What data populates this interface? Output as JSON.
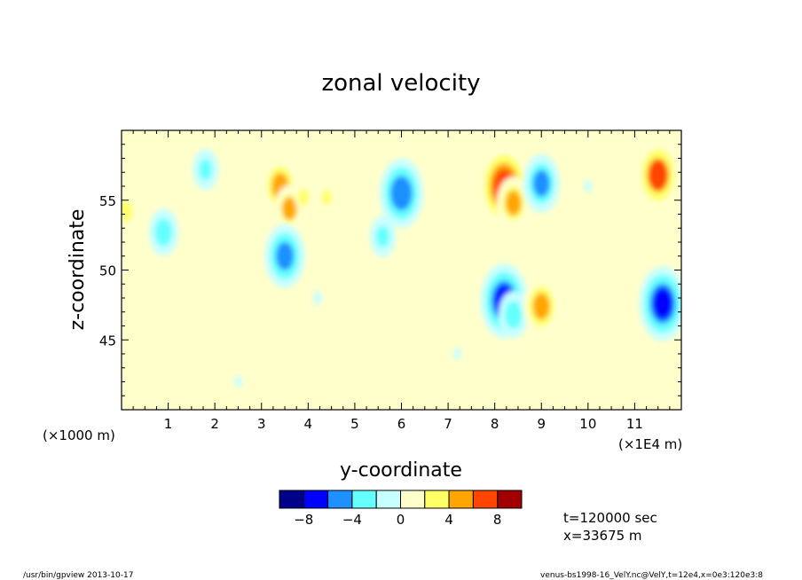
{
  "chart_data": {
    "type": "heatmap",
    "title": "zonal velocity",
    "xlabel": "y-coordinate",
    "ylabel": "z-coordinate",
    "x_unit_left": "(×1000 m)",
    "x_unit_right": "(×1E4 m)",
    "xlim": [
      0,
      12
    ],
    "ylim": [
      40,
      60
    ],
    "x_ticks": [
      "1",
      "2",
      "3",
      "4",
      "5",
      "6",
      "7",
      "8",
      "9",
      "10",
      "11"
    ],
    "y_ticks": [
      "45",
      "50",
      "55"
    ],
    "colorbar": {
      "levels": [
        -10,
        -8,
        -6,
        -4,
        -2,
        0,
        2,
        4,
        6,
        8,
        10
      ],
      "tick_labels": [
        "-8",
        "-4",
        "0",
        "4",
        "8"
      ],
      "colors": [
        "#00008b",
        "#0000ff",
        "#1e90ff",
        "#66ffff",
        "#c8ffff",
        "#ffffcc",
        "#ffff66",
        "#ffa500",
        "#ff4500",
        "#a00000"
      ]
    },
    "anomalies": [
      {
        "y": 0.9,
        "z": 52.7,
        "value": -4.5
      },
      {
        "y": 1.8,
        "z": 57.2,
        "value": -4.0
      },
      {
        "y": 3.4,
        "z": 56.0,
        "value": 5.5
      },
      {
        "y": 3.6,
        "z": 54.4,
        "value": 4.5
      },
      {
        "y": 3.9,
        "z": 55.2,
        "value": 3.0
      },
      {
        "y": 3.5,
        "z": 51.0,
        "value": -6.0
      },
      {
        "y": 4.4,
        "z": 55.2,
        "value": 2.5
      },
      {
        "y": 4.2,
        "z": 48.0,
        "value": -2.0
      },
      {
        "y": 5.6,
        "z": 52.4,
        "value": -4.0
      },
      {
        "y": 6.0,
        "z": 55.5,
        "value": -6.5
      },
      {
        "y": 6.5,
        "z": 53.5,
        "value": 1.5
      },
      {
        "y": 8.2,
        "z": 56.0,
        "value": 7.5
      },
      {
        "y": 8.4,
        "z": 54.8,
        "value": 5.0
      },
      {
        "y": 9.0,
        "z": 56.2,
        "value": -5.5
      },
      {
        "y": 8.2,
        "z": 47.8,
        "value": -7.0
      },
      {
        "y": 8.4,
        "z": 46.8,
        "value": -4.5
      },
      {
        "y": 9.0,
        "z": 47.4,
        "value": 5.5
      },
      {
        "y": 11.6,
        "z": 47.6,
        "value": -7.0
      },
      {
        "y": 11.5,
        "z": 56.8,
        "value": 6.5
      },
      {
        "y": 0.1,
        "z": 54.2,
        "value": 4.0
      },
      {
        "y": 10.1,
        "z": 48.8,
        "value": 1.5
      },
      {
        "y": 2.0,
        "z": 50.0,
        "value": 1.5
      },
      {
        "y": 7.2,
        "z": 44.0,
        "value": -1.5
      },
      {
        "y": 2.5,
        "z": 42.0,
        "value": -1.5
      },
      {
        "y": 10.0,
        "z": 56.0,
        "value": -1.5
      }
    ]
  },
  "info": {
    "time": "t=120000 sec",
    "position": "x=33675 m"
  },
  "footer": {
    "left": "/usr/bin/gpview  2013-10-17",
    "right": "venus-bs1998-16_VelY.nc@VelY,t=12e4,x=0e3:120e3:8"
  }
}
